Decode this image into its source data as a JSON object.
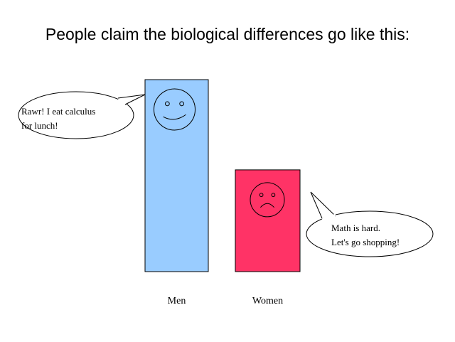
{
  "title": "People claim the biological differences go like this:",
  "chart_data": {
    "type": "bar",
    "title": "People claim the biological differences go like this:",
    "categories": [
      "Men",
      "Women"
    ],
    "values": [
      100,
      53
    ],
    "ylim": [
      0,
      100
    ],
    "grid": false,
    "colors": [
      "#99ccff",
      "#ff3366"
    ],
    "faces": [
      "smile",
      "frown"
    ],
    "annotations": [
      {
        "category": "Men",
        "lines": [
          "Rawr! I eat calculus",
          "for lunch!"
        ]
      },
      {
        "category": "Women",
        "lines": [
          "Math is hard.",
          "Let's go shopping!"
        ]
      }
    ]
  }
}
